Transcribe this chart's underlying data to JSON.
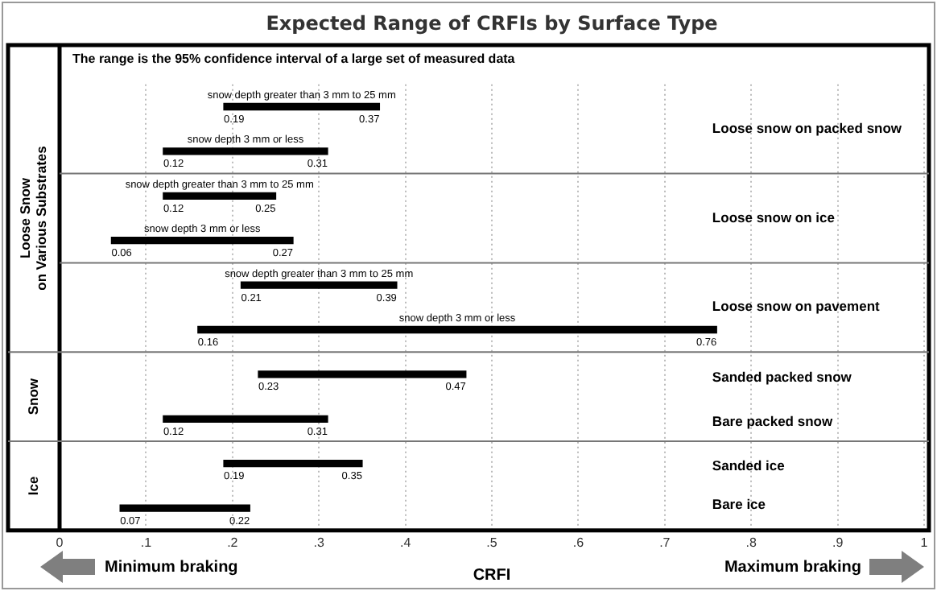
{
  "chart_data": {
    "type": "bar",
    "orientation": "horizontal",
    "title": "Expected Range of CRFIs by Surface Type",
    "xlabel": "CRFI",
    "categories": [
      "snow depth greater than 3 mm to 25 mm",
      "snow depth 3 mm or less",
      "snow depth greater than 3 mm to 25 mm",
      "snow depth 3 mm or less",
      "snow depth greater than 3 mm to 25 mm",
      "snow depth 3 mm or less",
      null,
      null,
      null,
      null
    ],
    "base": [
      0.19,
      0.12,
      0.12,
      0.06,
      0.21,
      0.16,
      0.23,
      0.12,
      0.19,
      0.07
    ],
    "values": [
      0.18,
      0.19,
      0.13,
      0.21,
      0.18,
      0.6,
      0.24,
      0.19,
      0.16,
      0.15
    ],
    "color": "#000000",
    "grid": "x",
    "xlim": [
      0,
      1
    ],
    "xticks": [
      0,
      {
        "value": 0.1,
        "label": ".1"
      },
      {
        "value": 0.2,
        "label": ".2"
      },
      {
        "value": 0.3,
        "label": ".3"
      },
      {
        "value": 0.4,
        "label": ".4"
      },
      {
        "value": 0.5,
        "label": ".5"
      },
      {
        "value": 0.6,
        "label": ".6"
      },
      {
        "value": 0.7,
        "label": ".7"
      },
      {
        "value": 0.8,
        "label": ".8"
      },
      {
        "value": 0.9,
        "label": ".9"
      },
      1
    ],
    "annotations": [
      "The range is the 95% confidence interval of a large set of measured data",
      "Loose snow on packed snow",
      "Loose snow on ice",
      "Loose snow on pavement",
      "Sanded packed snow",
      "Bare packed snow",
      "Sanded ice",
      "Bare ice",
      "Loose Snow\non Various Substrates",
      "Snow",
      "Ice",
      "Minimum braking",
      "Maximum braking",
      "0.19",
      "0.37",
      "0.12",
      "0.31",
      "0.12",
      "0.25",
      "0.06",
      "0.27",
      "0.21",
      "0.39",
      "0.16",
      "0.76",
      "0.23",
      "0.47",
      "0.12",
      "0.31",
      "0.19",
      "0.35",
      "0.07",
      "0.22"
    ]
  }
}
